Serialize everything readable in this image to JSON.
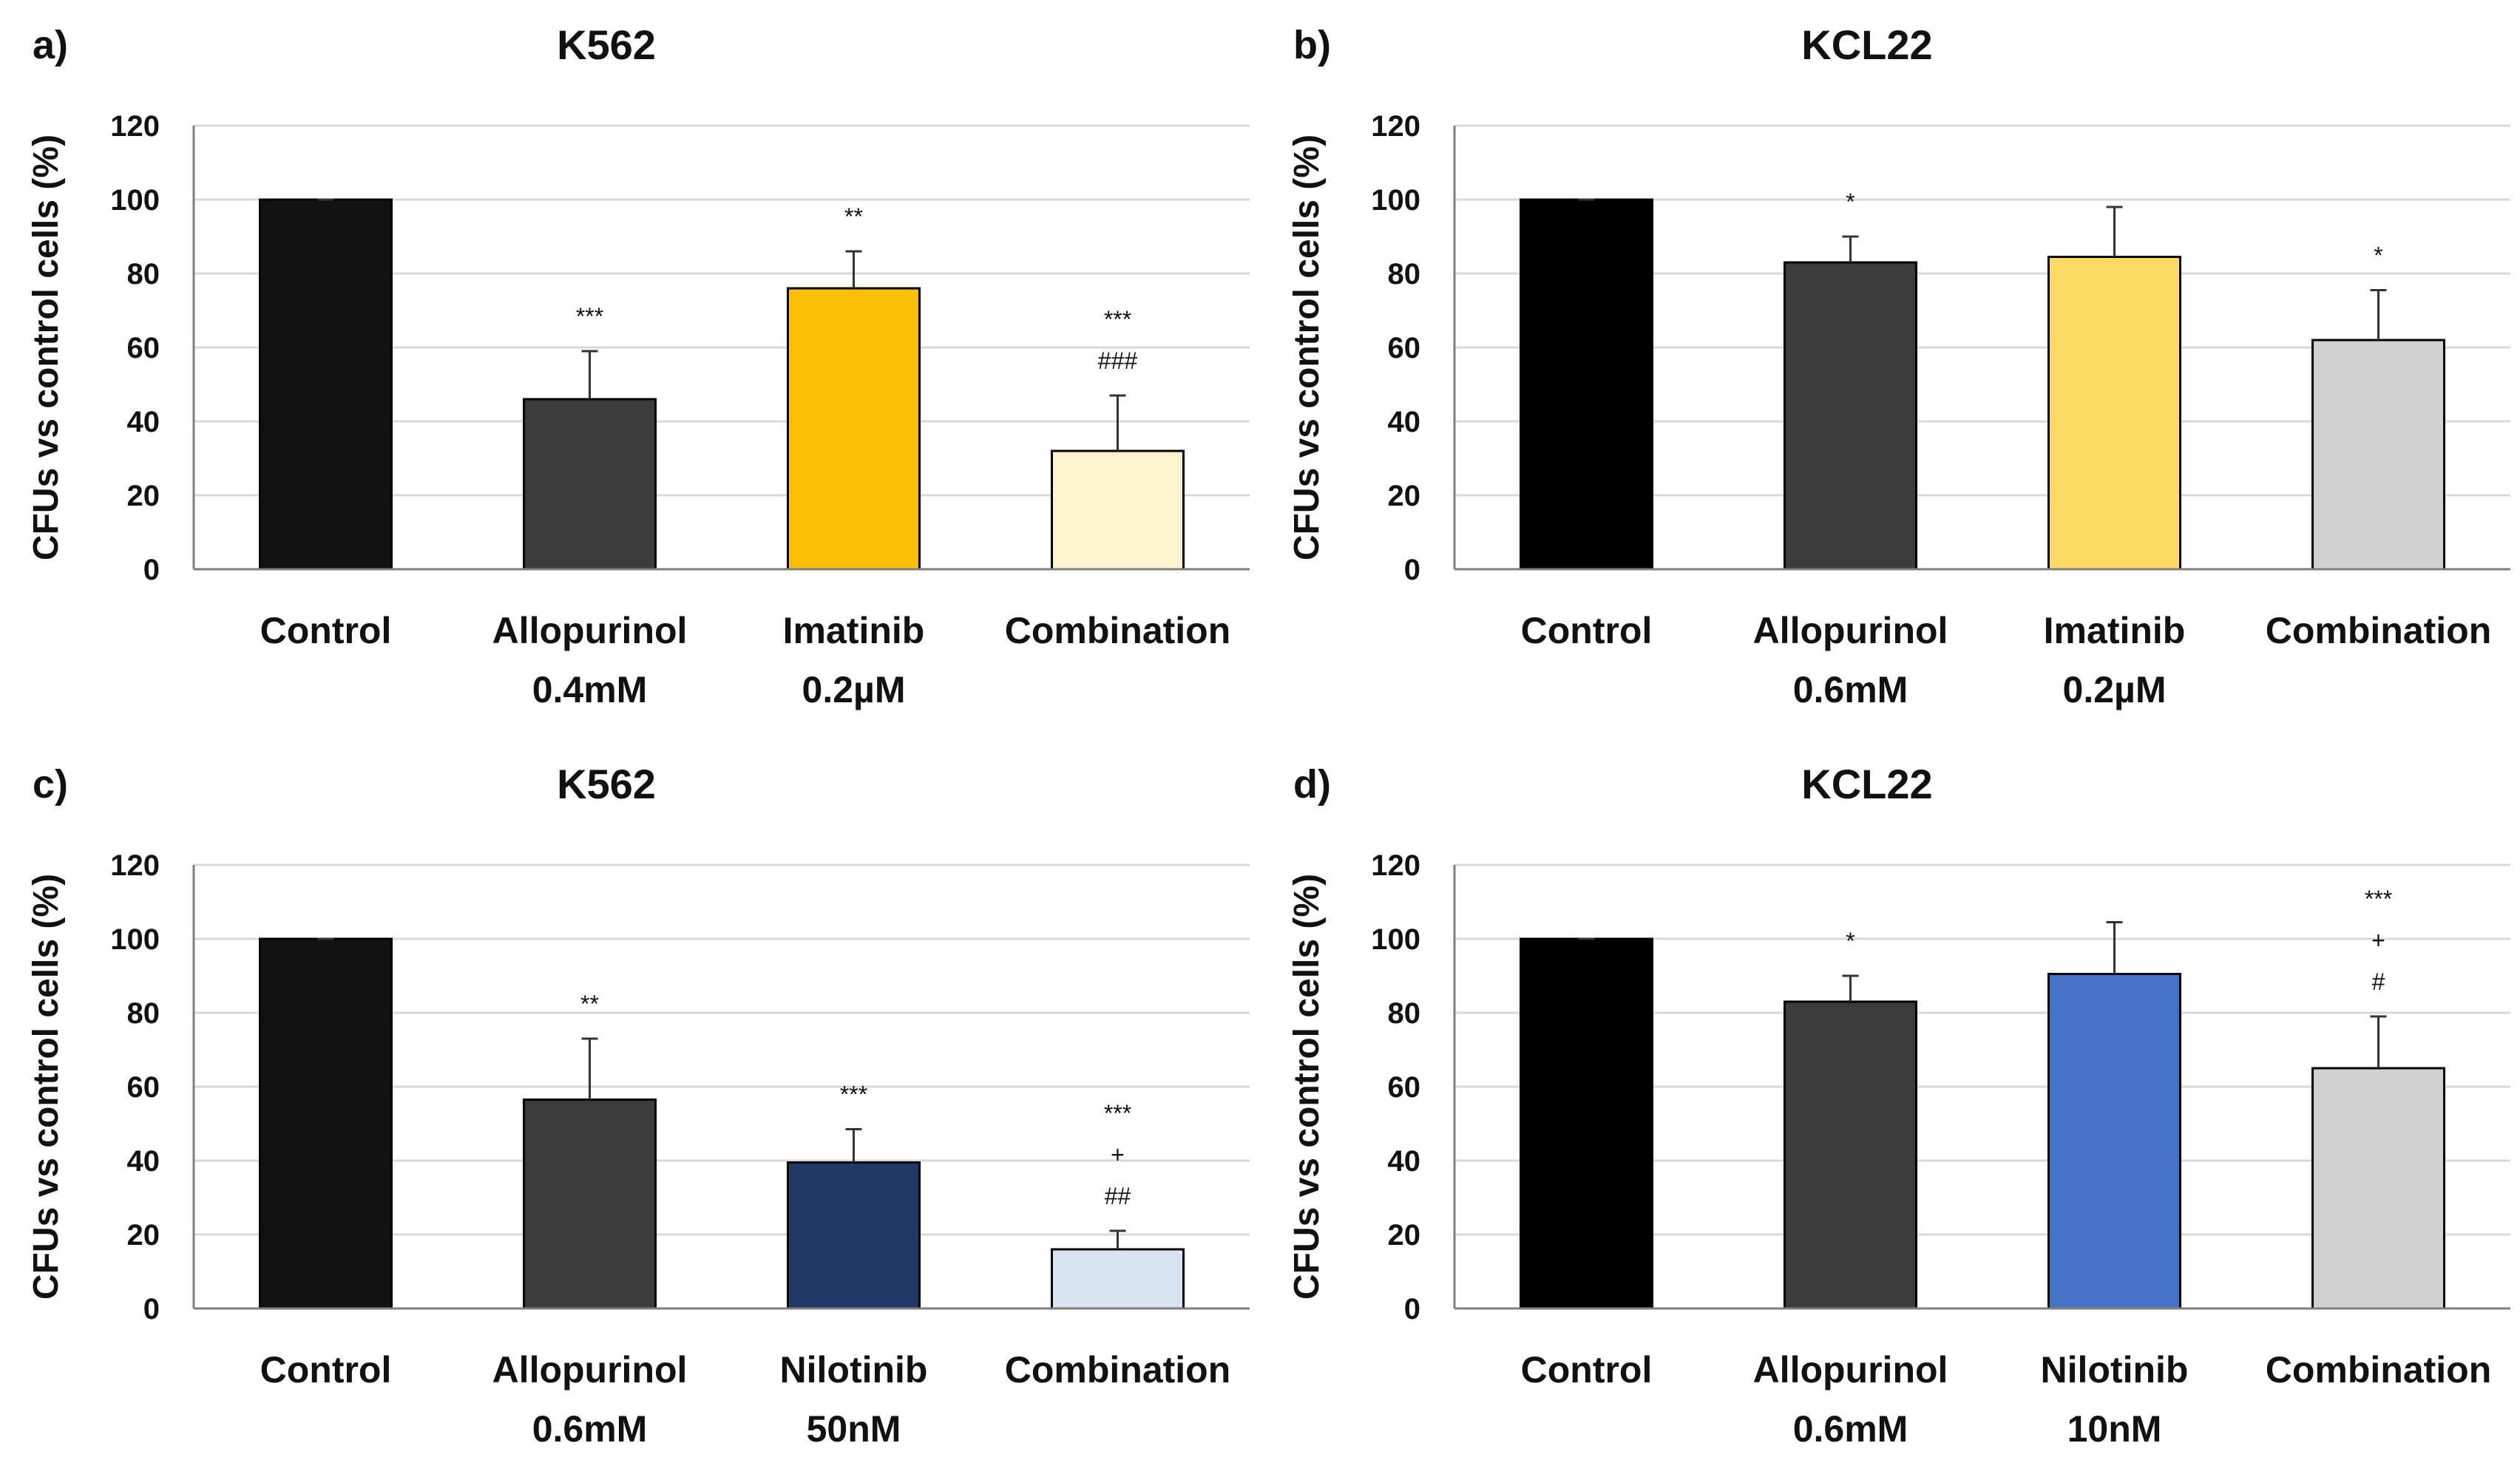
{
  "chart_data": [
    {
      "panel": "a)",
      "type": "bar",
      "title": "K562",
      "ylabel": "CFUs vs control cells (%)",
      "ylim": [
        0,
        120
      ],
      "yticks": [
        0,
        20,
        40,
        60,
        80,
        100,
        120
      ],
      "grid": true,
      "categories": [
        {
          "name": "Control",
          "dose": ""
        },
        {
          "name": "Allopurinol",
          "dose": "0.4mM"
        },
        {
          "name": "Imatinib",
          "dose": "0.2µM"
        },
        {
          "name": "Combination",
          "dose": ""
        }
      ],
      "values": [
        100,
        46,
        76,
        32
      ],
      "errors": [
        0,
        13,
        10,
        15
      ],
      "colors": [
        "#111111",
        "#3b3b3b",
        "#fbc005",
        "#fff3cf"
      ],
      "annotations": [
        [],
        [
          "***"
        ],
        [
          "**"
        ],
        [
          "***",
          "###"
        ]
      ]
    },
    {
      "panel": "b)",
      "type": "bar",
      "title": "KCL22",
      "ylabel": "CFUs vs control cells (%)",
      "ylim": [
        0,
        120
      ],
      "yticks": [
        0,
        20,
        40,
        60,
        80,
        100,
        120
      ],
      "grid": true,
      "categories": [
        {
          "name": "Control",
          "dose": ""
        },
        {
          "name": "Allopurinol",
          "dose": "0.6mM"
        },
        {
          "name": "Imatinib",
          "dose": "0.2µM"
        },
        {
          "name": "Combination",
          "dose": ""
        }
      ],
      "values": [
        100,
        83,
        84.5,
        62
      ],
      "errors": [
        0,
        7,
        13.5,
        13.5
      ],
      "colors": [
        "#000000",
        "#3b3b3b",
        "#fdd966",
        "#d0d0d0"
      ],
      "annotations": [
        [],
        [
          "*"
        ],
        [],
        [
          "*"
        ]
      ]
    },
    {
      "panel": "c)",
      "type": "bar",
      "title": "K562",
      "ylabel": "CFUs vs control cells (%)",
      "ylim": [
        0,
        120
      ],
      "yticks": [
        0,
        20,
        40,
        60,
        80,
        100,
        120
      ],
      "grid": true,
      "categories": [
        {
          "name": "Control",
          "dose": ""
        },
        {
          "name": "Allopurinol",
          "dose": "0.6mM"
        },
        {
          "name": "Nilotinib",
          "dose": "50nM"
        },
        {
          "name": "Combination",
          "dose": ""
        }
      ],
      "values": [
        100,
        56.5,
        39.5,
        16
      ],
      "errors": [
        0,
        16.5,
        9,
        5
      ],
      "colors": [
        "#111111",
        "#3b3b3b",
        "#203864",
        "#dae3f3"
      ],
      "annotations": [
        [],
        [
          "**"
        ],
        [
          "***"
        ],
        [
          "***",
          "+",
          "##"
        ]
      ]
    },
    {
      "panel": "d)",
      "type": "bar",
      "title": "KCL22",
      "ylabel": "CFUs vs control cells (%)",
      "ylim": [
        0,
        120
      ],
      "yticks": [
        0,
        20,
        40,
        60,
        80,
        100,
        120
      ],
      "grid": true,
      "categories": [
        {
          "name": "Control",
          "dose": ""
        },
        {
          "name": "Allopurinol",
          "dose": "0.6mM"
        },
        {
          "name": "Nilotinib",
          "dose": "10nM"
        },
        {
          "name": "Combination",
          "dose": ""
        }
      ],
      "values": [
        100,
        83,
        90.5,
        65
      ],
      "errors": [
        0,
        7,
        14,
        14
      ],
      "colors": [
        "#000000",
        "#3b3b3b",
        "#4472c4",
        "#d0d0d0"
      ],
      "annotations": [
        [],
        [
          "*"
        ],
        [],
        [
          "***",
          "+",
          "#"
        ]
      ]
    }
  ]
}
